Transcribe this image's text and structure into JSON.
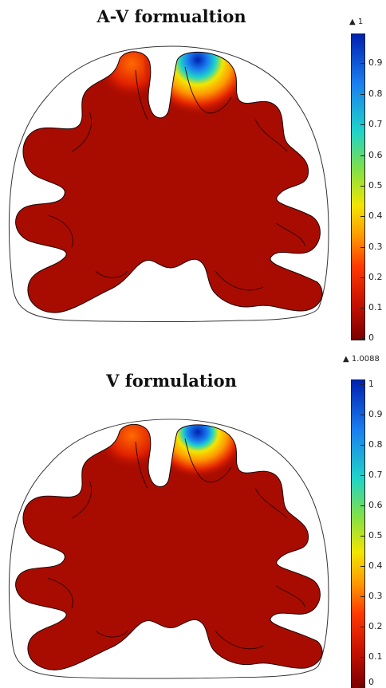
{
  "panels": [
    {
      "title": "A-V formualtion",
      "colorbar_max_label": "▲ 1",
      "ticks": [
        "0.9",
        "0.8",
        "0.7",
        "0.6",
        "0.5",
        "0.4",
        "0.3",
        "0.2",
        "0.1",
        "0"
      ]
    },
    {
      "title": "V formulation",
      "colorbar_max_label": "▲ 1.0088",
      "ticks": [
        "1",
        "0.9",
        "0.8",
        "0.7",
        "0.6",
        "0.5",
        "0.4",
        "0.3",
        "0.2",
        "0.1",
        "0"
      ]
    }
  ],
  "colormap": [
    "#7a0000",
    "#c81200",
    "#ff3a00",
    "#ff9a00",
    "#f2e600",
    "#7fe04a",
    "#20d4c8",
    "#1a7ef0",
    "#0020b0"
  ]
}
